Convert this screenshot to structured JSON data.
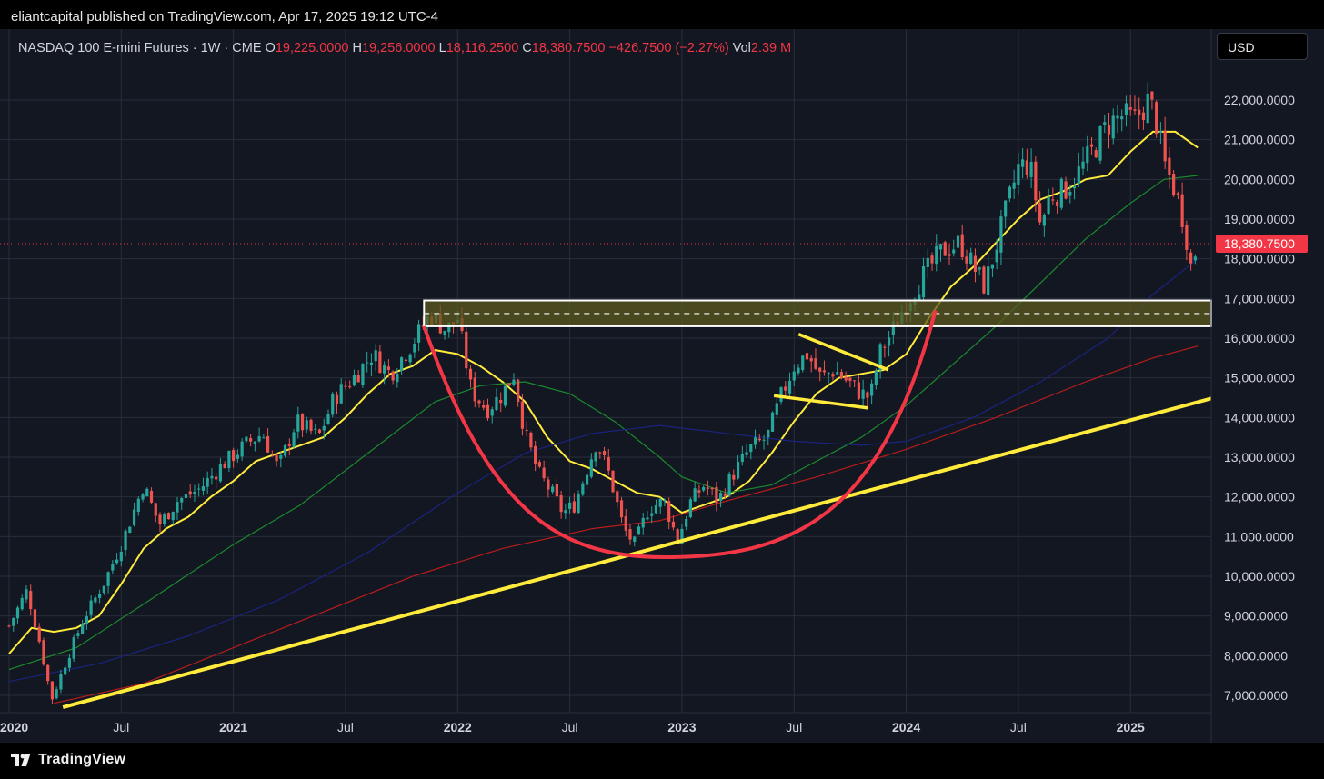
{
  "publisher": {
    "text": "eliantcapital published on TradingView.com, Apr 17, 2025 19:12 UTC-4"
  },
  "legend": {
    "symbol": "NASDAQ 100 E-mini Futures · 1W · CME",
    "open_label": "O",
    "open": "19,225.0000",
    "high_label": "H",
    "high": "19,256.0000",
    "low_label": "L",
    "low": "18,116.2500",
    "close_label": "C",
    "close": "18,380.7500",
    "change": "−426.7500 (−2.27%)",
    "vol_label": "Vol",
    "vol": "2.39 M"
  },
  "currency": "USD",
  "footer": {
    "brand": "TradingView"
  },
  "chart_data": {
    "type": "candlestick",
    "title": "NASDAQ 100 E-mini Futures · 1W · CME",
    "ylim": [
      6700,
      22800
    ],
    "yticks": [
      7000,
      8000,
      9000,
      10000,
      11000,
      12000,
      13000,
      14000,
      15000,
      16000,
      17000,
      18000,
      19000,
      20000,
      21000,
      22000
    ],
    "ytick_labels": [
      "7,000.0000",
      "8,000.0000",
      "9,000.0000",
      "10,000.0000",
      "11,000.0000",
      "12,000.0000",
      "13,000.0000",
      "14,000.0000",
      "15,000.0000",
      "16,000.0000",
      "17,000.0000",
      "18,000.0000",
      "19,000.0000",
      "20,000.0000",
      "21,000.0000",
      "22,000.0000"
    ],
    "xlim": [
      2020.0,
      2025.36
    ],
    "xticks": [
      {
        "x": 2020.0,
        "label": "2020",
        "bold": true
      },
      {
        "x": 2020.5,
        "label": "Jul",
        "bold": false
      },
      {
        "x": 2021.0,
        "label": "2021",
        "bold": true
      },
      {
        "x": 2021.5,
        "label": "Jul",
        "bold": false
      },
      {
        "x": 2022.0,
        "label": "2022",
        "bold": true
      },
      {
        "x": 2022.5,
        "label": "Jul",
        "bold": false
      },
      {
        "x": 2023.0,
        "label": "2023",
        "bold": true
      },
      {
        "x": 2023.5,
        "label": "Jul",
        "bold": false
      },
      {
        "x": 2024.0,
        "label": "2024",
        "bold": true
      },
      {
        "x": 2024.5,
        "label": "Jul",
        "bold": false
      },
      {
        "x": 2025.0,
        "label": "2025",
        "bold": true
      }
    ],
    "last_price": 18380.75,
    "last_price_label": "18,380.7500",
    "colors": {
      "up": "#26a69a",
      "down": "#ef5350",
      "background": "#131722",
      "grid": "#2a2e39"
    },
    "price_path": [
      [
        2020.0,
        8750
      ],
      [
        2020.08,
        9650
      ],
      [
        2020.13,
        8500
      ],
      [
        2020.19,
        6900
      ],
      [
        2020.25,
        7800
      ],
      [
        2020.33,
        8900
      ],
      [
        2020.42,
        9800
      ],
      [
        2020.5,
        10800
      ],
      [
        2020.6,
        12300
      ],
      [
        2020.67,
        11300
      ],
      [
        2020.75,
        11900
      ],
      [
        2020.85,
        12200
      ],
      [
        2020.95,
        12800
      ],
      [
        2021.05,
        13300
      ],
      [
        2021.13,
        13600
      ],
      [
        2021.2,
        12700
      ],
      [
        2021.28,
        13900
      ],
      [
        2021.38,
        13500
      ],
      [
        2021.45,
        14500
      ],
      [
        2021.55,
        15100
      ],
      [
        2021.62,
        15600
      ],
      [
        2021.7,
        15100
      ],
      [
        2021.8,
        15900
      ],
      [
        2021.88,
        16600
      ],
      [
        2021.95,
        16200
      ],
      [
        2022.0,
        16500
      ],
      [
        2022.06,
        14700
      ],
      [
        2022.13,
        14200
      ],
      [
        2022.2,
        14600
      ],
      [
        2022.25,
        15100
      ],
      [
        2022.3,
        13600
      ],
      [
        2022.36,
        12600
      ],
      [
        2022.42,
        12100
      ],
      [
        2022.47,
        11600
      ],
      [
        2022.52,
        11800
      ],
      [
        2022.57,
        12600
      ],
      [
        2022.62,
        13400
      ],
      [
        2022.68,
        12500
      ],
      [
        2022.74,
        11200
      ],
      [
        2022.79,
        10800
      ],
      [
        2022.85,
        11700
      ],
      [
        2022.92,
        11900
      ],
      [
        2022.98,
        10900
      ],
      [
        2023.04,
        11900
      ],
      [
        2023.1,
        12300
      ],
      [
        2023.16,
        11900
      ],
      [
        2023.22,
        12500
      ],
      [
        2023.3,
        13200
      ],
      [
        2023.38,
        13500
      ],
      [
        2023.44,
        14500
      ],
      [
        2023.5,
        15300
      ],
      [
        2023.56,
        15600
      ],
      [
        2023.62,
        15000
      ],
      [
        2023.68,
        15200
      ],
      [
        2023.74,
        14900
      ],
      [
        2023.8,
        14600
      ],
      [
        2023.84,
        14500
      ],
      [
        2023.88,
        15600
      ],
      [
        2023.94,
        16200
      ],
      [
        2024.0,
        16900
      ],
      [
        2024.08,
        17600
      ],
      [
        2024.16,
        18200
      ],
      [
        2024.24,
        18400
      ],
      [
        2024.3,
        17800
      ],
      [
        2024.35,
        17300
      ],
      [
        2024.42,
        18700
      ],
      [
        2024.5,
        20300
      ],
      [
        2024.55,
        20400
      ],
      [
        2024.6,
        18800
      ],
      [
        2024.64,
        19600
      ],
      [
        2024.7,
        19700
      ],
      [
        2024.76,
        20100
      ],
      [
        2024.83,
        20700
      ],
      [
        2024.9,
        21400
      ],
      [
        2024.96,
        21600
      ],
      [
        2025.02,
        21500
      ],
      [
        2025.08,
        22000
      ],
      [
        2025.11,
        21600
      ],
      [
        2025.15,
        20400
      ],
      [
        2025.2,
        19700
      ],
      [
        2025.24,
        18900
      ],
      [
        2025.27,
        17800
      ],
      [
        2025.29,
        18200
      ],
      [
        2025.3,
        18380
      ]
    ],
    "moving_averages": [
      {
        "color": "#ffeb3b",
        "points": [
          [
            2020.0,
            8050
          ],
          [
            2020.1,
            8700
          ],
          [
            2020.2,
            8600
          ],
          [
            2020.3,
            8700
          ],
          [
            2020.4,
            9000
          ],
          [
            2020.5,
            9800
          ],
          [
            2020.6,
            10700
          ],
          [
            2020.7,
            11200
          ],
          [
            2020.8,
            11500
          ],
          [
            2020.9,
            12000
          ],
          [
            2021.0,
            12400
          ],
          [
            2021.1,
            12900
          ],
          [
            2021.2,
            13100
          ],
          [
            2021.3,
            13300
          ],
          [
            2021.4,
            13500
          ],
          [
            2021.5,
            14000
          ],
          [
            2021.6,
            14600
          ],
          [
            2021.7,
            15100
          ],
          [
            2021.8,
            15300
          ],
          [
            2021.9,
            15700
          ],
          [
            2022.0,
            15600
          ],
          [
            2022.1,
            15300
          ],
          [
            2022.2,
            14900
          ],
          [
            2022.3,
            14400
          ],
          [
            2022.4,
            13500
          ],
          [
            2022.5,
            12900
          ],
          [
            2022.6,
            12700
          ],
          [
            2022.7,
            12400
          ],
          [
            2022.8,
            12100
          ],
          [
            2022.9,
            12000
          ],
          [
            2023.0,
            11600
          ],
          [
            2023.1,
            11800
          ],
          [
            2023.2,
            12000
          ],
          [
            2023.3,
            12400
          ],
          [
            2023.4,
            13100
          ],
          [
            2023.5,
            13900
          ],
          [
            2023.6,
            14600
          ],
          [
            2023.7,
            15000
          ],
          [
            2023.8,
            15100
          ],
          [
            2023.9,
            15200
          ],
          [
            2024.0,
            15600
          ],
          [
            2024.1,
            16500
          ],
          [
            2024.2,
            17300
          ],
          [
            2024.3,
            17800
          ],
          [
            2024.4,
            18400
          ],
          [
            2024.5,
            19000
          ],
          [
            2024.6,
            19500
          ],
          [
            2024.7,
            19700
          ],
          [
            2024.8,
            20000
          ],
          [
            2024.9,
            20100
          ],
          [
            2025.0,
            20700
          ],
          [
            2025.1,
            21200
          ],
          [
            2025.2,
            21200
          ],
          [
            2025.3,
            20800
          ]
        ]
      },
      {
        "color": "#1b8a2e",
        "points": [
          [
            2020.0,
            7650
          ],
          [
            2020.3,
            8200
          ],
          [
            2020.6,
            9300
          ],
          [
            2021.0,
            10800
          ],
          [
            2021.3,
            11800
          ],
          [
            2021.6,
            13100
          ],
          [
            2021.9,
            14400
          ],
          [
            2022.1,
            14800
          ],
          [
            2022.3,
            14900
          ],
          [
            2022.5,
            14600
          ],
          [
            2022.7,
            13900
          ],
          [
            2022.9,
            13000
          ],
          [
            2023.0,
            12500
          ],
          [
            2023.2,
            12100
          ],
          [
            2023.4,
            12300
          ],
          [
            2023.6,
            12900
          ],
          [
            2023.8,
            13500
          ],
          [
            2024.0,
            14300
          ],
          [
            2024.2,
            15300
          ],
          [
            2024.4,
            16300
          ],
          [
            2024.6,
            17400
          ],
          [
            2024.8,
            18500
          ],
          [
            2025.0,
            19400
          ],
          [
            2025.15,
            20000
          ],
          [
            2025.3,
            20100
          ]
        ]
      },
      {
        "color": "#1a237e",
        "points": [
          [
            2020.0,
            7350
          ],
          [
            2020.4,
            7800
          ],
          [
            2020.8,
            8500
          ],
          [
            2021.2,
            9400
          ],
          [
            2021.6,
            10600
          ],
          [
            2022.0,
            12100
          ],
          [
            2022.3,
            13100
          ],
          [
            2022.6,
            13600
          ],
          [
            2022.9,
            13800
          ],
          [
            2023.2,
            13600
          ],
          [
            2023.5,
            13400
          ],
          [
            2023.8,
            13300
          ],
          [
            2024.0,
            13400
          ],
          [
            2024.3,
            14000
          ],
          [
            2024.6,
            14900
          ],
          [
            2024.9,
            16000
          ],
          [
            2025.1,
            17100
          ],
          [
            2025.3,
            18000
          ]
        ]
      },
      {
        "color": "#b71c1c",
        "points": [
          [
            2020.2,
            6800
          ],
          [
            2020.6,
            7300
          ],
          [
            2021.0,
            8200
          ],
          [
            2021.4,
            9100
          ],
          [
            2021.8,
            10000
          ],
          [
            2022.2,
            10700
          ],
          [
            2022.6,
            11200
          ],
          [
            2022.9,
            11400
          ],
          [
            2023.2,
            11900
          ],
          [
            2023.6,
            12500
          ],
          [
            2024.0,
            13200
          ],
          [
            2024.4,
            14000
          ],
          [
            2024.8,
            14900
          ],
          [
            2025.1,
            15500
          ],
          [
            2025.3,
            15800
          ]
        ]
      }
    ],
    "annotations": {
      "support_zone": {
        "x_start": 2021.85,
        "x_end": 2025.36,
        "y_low": 16300,
        "y_high": 16950,
        "midline": 16620
      },
      "trendline": {
        "x_start": 2020.24,
        "y_start": 6700,
        "x_end": 2025.36,
        "y_end": 14480
      },
      "cup_arc": {
        "x_start": 2021.85,
        "y_start": 16300,
        "x_bottom": 2022.92,
        "y_bottom": 10480,
        "x_end": 2024.13,
        "y_end": 16700
      },
      "flag_upper": {
        "x_start": 2023.52,
        "y_start": 16100,
        "x_end": 2023.92,
        "y_end": 15200
      },
      "flag_lower": {
        "x_start": 2023.41,
        "y_start": 14550,
        "x_end": 2023.83,
        "y_end": 14240
      }
    }
  }
}
